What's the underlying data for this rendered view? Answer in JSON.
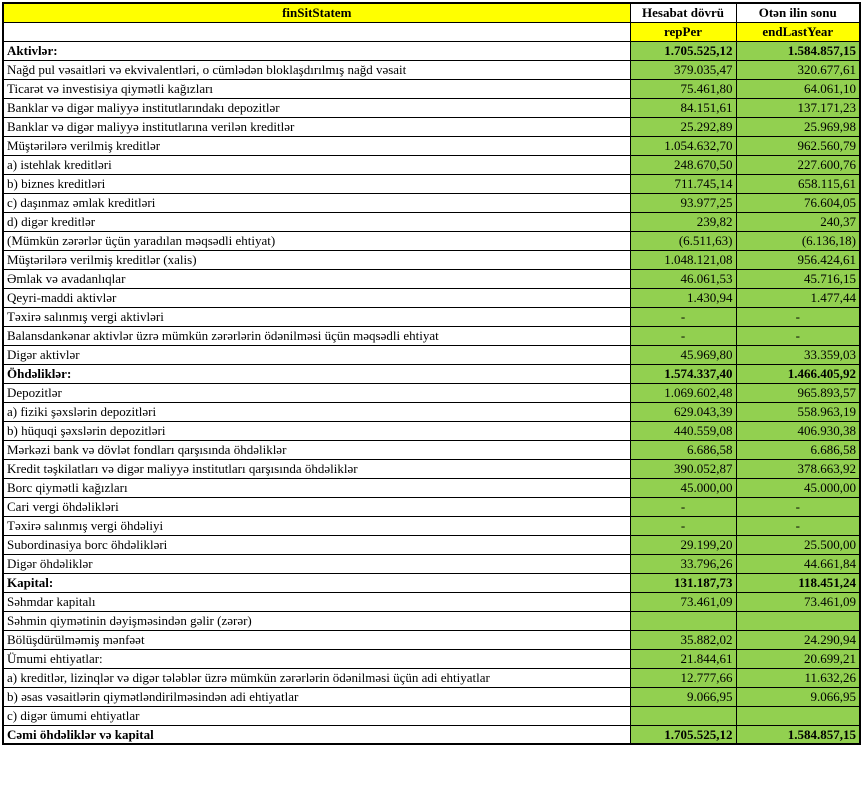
{
  "table": {
    "colors": {
      "header_yellow": "#FFFF00",
      "value_green": "#92D050",
      "border_black": "#000000"
    },
    "header": {
      "title": "finSitStatem",
      "col_report": "Hesabat dövrü",
      "col_lastyear": "Otən ilin sonu",
      "sub_report": "repPer",
      "sub_lastyear": "endLastYear"
    },
    "rows": [
      {
        "label": "Aktivlər:",
        "v1": "1.705.525,12",
        "v2": "1.584.857,15",
        "bold": true
      },
      {
        "label": "Nağd pul vəsaitləri və  ekvivalentləri, o cümlədən bloklaşdırılmış nağd vəsait",
        "v1": "379.035,47",
        "v2": "320.677,61"
      },
      {
        "label": "Ticarət və investisiya qiymətli kağızları",
        "v1": "75.461,80",
        "v2": "64.061,10"
      },
      {
        "label": "Banklar və digər maliyyə institutlarındakı depozitlər",
        "v1": "84.151,61",
        "v2": "137.171,23"
      },
      {
        "label": "Banklar və digər maliyyə institutlarına verilən kreditlər",
        "v1": "25.292,89",
        "v2": "25.969,98"
      },
      {
        "label": "Müştərilərə verilmiş kreditlər",
        "v1": "1.054.632,70",
        "v2": "962.560,79"
      },
      {
        "label": "a) istehlak kreditləri",
        "v1": "248.670,50",
        "v2": "227.600,76"
      },
      {
        "label": "b) biznes kreditləri",
        "v1": "711.745,14",
        "v2": "658.115,61"
      },
      {
        "label": "c) daşınmaz əmlak kreditləri",
        "v1": "93.977,25",
        "v2": "76.604,05"
      },
      {
        "label": "d) digər kreditlər",
        "v1": "239,82",
        "v2": "240,37"
      },
      {
        "label": "(Mümkün zərərlər üçün yaradılan məqsədli ehtiyat)",
        "v1": "(6.511,63)",
        "v2": "(6.136,18)"
      },
      {
        "label": "Müştərilərə verilmiş kreditlər (xalis)",
        "v1": "1.048.121,08",
        "v2": "956.424,61"
      },
      {
        "label": "Əmlak və avadanlıqlar",
        "v1": "46.061,53",
        "v2": "45.716,15"
      },
      {
        "label": "Qeyri-maddi aktivlər",
        "v1": "1.430,94",
        "v2": "1.477,44"
      },
      {
        "label": "Təxirə salınmış vergi aktivləri",
        "v1": "-",
        "v2": "-",
        "dash": true
      },
      {
        "label": "Balansdankənar aktivlər üzrə mümkün zərərlərin ödənilməsi üçün məqsədli ehtiyat",
        "v1": "-",
        "v2": "-",
        "dash": true
      },
      {
        "label": "Digər aktivlər",
        "v1": "45.969,80",
        "v2": "33.359,03"
      },
      {
        "label": "Öhdəliklər:",
        "v1": "1.574.337,40",
        "v2": "1.466.405,92",
        "bold": true
      },
      {
        "label": "Depozitlər",
        "v1": "1.069.602,48",
        "v2": "965.893,57"
      },
      {
        "label": "a) fiziki şəxslərin depozitləri",
        "v1": "629.043,39",
        "v2": "558.963,19"
      },
      {
        "label": "b) hüquqi şəxslərin depozitləri",
        "v1": "440.559,08",
        "v2": "406.930,38"
      },
      {
        "label": "Mərkəzi bank və dövlət fondları qarşısında öhdəliklər",
        "v1": "6.686,58",
        "v2": "6.686,58"
      },
      {
        "label": "Kredit təşkilatları və digər maliyyə institutları qarşısında öhdəliklər",
        "v1": "390.052,87",
        "v2": "378.663,92"
      },
      {
        "label": "Borc qiymətli kağızları",
        "v1": "45.000,00",
        "v2": "45.000,00"
      },
      {
        "label": "Cari vergi öhdəlikləri",
        "v1": "-",
        "v2": "-",
        "dash": true
      },
      {
        "label": "Təxirə salınmış vergi öhdəliyi",
        "v1": "-",
        "v2": "-",
        "dash": true
      },
      {
        "label": "Subordinasiya borc öhdəlikləri",
        "v1": "29.199,20",
        "v2": "25.500,00"
      },
      {
        "label": "Digər öhdəliklər",
        "v1": "33.796,26",
        "v2": "44.661,84"
      },
      {
        "label": "Kapital:",
        "v1": "131.187,73",
        "v2": "118.451,24",
        "bold": true
      },
      {
        "label": "Səhmdar kapitalı",
        "v1": "73.461,09",
        "v2": "73.461,09"
      },
      {
        "label": "Səhmin qiymətinin dəyişməsindən gəlir (zərər)",
        "v1": "",
        "v2": ""
      },
      {
        "label": "Bölüşdürülməmiş mənfəət",
        "v1": "35.882,02",
        "v2": "24.290,94"
      },
      {
        "label": "Ümumi ehtiyatlar:",
        "v1": "21.844,61",
        "v2": "20.699,21"
      },
      {
        "label": "a) kreditlər, lizinqlər və digər tələblər üzrə mümkün zərərlərin ödənilməsi üçün adi ehtiyatlar",
        "v1": "12.777,66",
        "v2": "11.632,26"
      },
      {
        "label": "b) əsas vəsaitlərin qiymətləndirilməsindən adi ehtiyatlar",
        "v1": "9.066,95",
        "v2": "9.066,95"
      },
      {
        "label": "c) digər ümumi ehtiyatlar",
        "v1": "",
        "v2": ""
      },
      {
        "label": "Cəmi öhdəliklər və kapital",
        "v1": "1.705.525,12",
        "v2": "1.584.857,15",
        "bold": true
      }
    ]
  }
}
